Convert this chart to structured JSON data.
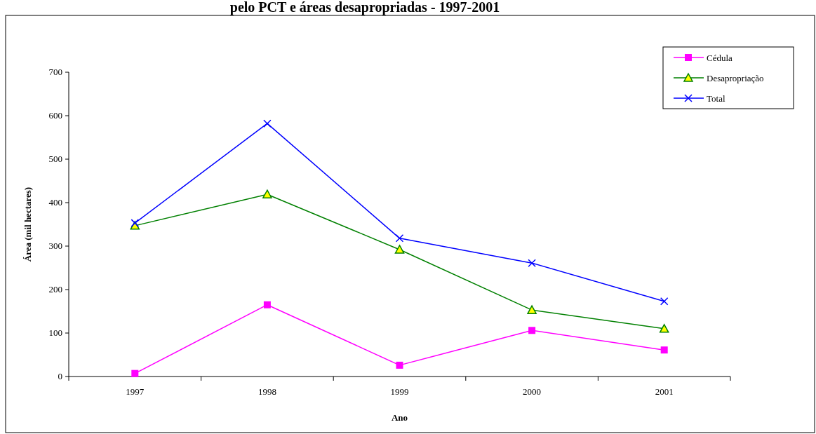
{
  "chart_data": {
    "type": "line",
    "title": "pelo PCT e áreas desapropriadas - 1997-2001",
    "xlabel": "Ano",
    "ylabel": "Área (mil hectares)",
    "categories": [
      "1997",
      "1998",
      "1999",
      "2000",
      "2001"
    ],
    "series": [
      {
        "name": "Cédula",
        "color": "#ff00ff",
        "marker": "square",
        "values": [
          7,
          165,
          26,
          106,
          61
        ]
      },
      {
        "name": "Desapropriação",
        "color": "#008000",
        "marker": "triangle",
        "values": [
          347,
          419,
          292,
          153,
          110
        ]
      },
      {
        "name": "Total",
        "color": "#0000ff",
        "marker": "cross",
        "values": [
          353,
          582,
          318,
          261,
          173
        ]
      }
    ],
    "ylim": [
      0,
      700
    ],
    "yticks": [
      0,
      100,
      200,
      300,
      400,
      500,
      600,
      700
    ],
    "grid": false,
    "legend": "top right",
    "line_style": "solid"
  }
}
